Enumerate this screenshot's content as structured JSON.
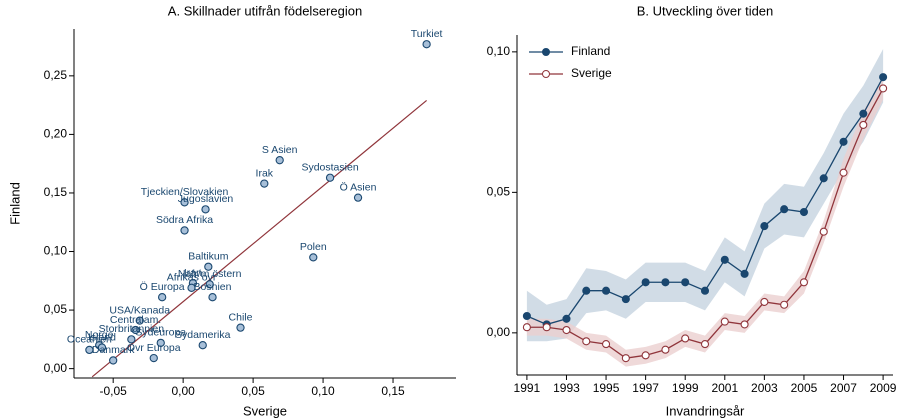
{
  "chart_data": [
    {
      "type": "scatter",
      "title": "A. Skillnader utifrån födelseregion",
      "x_label": "Sverige",
      "y_label": "Finland",
      "labels": [
        "Turkiet",
        "S Asien",
        "Sydostasien",
        "Irak",
        "Ö Asien",
        "Tjeckien/Slovakien",
        "Jugoslavien",
        "Södra Afrika",
        "Polen",
        "Baltikum",
        "Iran",
        "Nafr/m östern",
        "Afrikas övr",
        "Ö Europa",
        "Bosnien",
        "USA/Kanada",
        "Chile",
        "Centralam.",
        "Sydamerika",
        "Storbritannien",
        "Sydeuropa",
        "Övr Europa",
        "Norge",
        "Island",
        "Oceanien",
        "Danmark"
      ],
      "x": [
        0.174,
        0.069,
        0.105,
        0.058,
        0.125,
        0.001,
        0.016,
        0.001,
        0.093,
        0.018,
        0.007,
        0.019,
        0.006,
        -0.015,
        0.021,
        -0.031,
        0.041,
        -0.034,
        0.014,
        -0.037,
        -0.016,
        -0.021,
        -0.06,
        -0.058,
        -0.067,
        -0.05
      ],
      "values": [
        0.277,
        0.178,
        0.163,
        0.158,
        0.146,
        0.142,
        0.136,
        0.118,
        0.095,
        0.087,
        0.073,
        0.072,
        0.069,
        0.061,
        0.061,
        0.041,
        0.035,
        0.033,
        0.02,
        0.025,
        0.022,
        0.009,
        0.02,
        0.018,
        0.016,
        0.007
      ],
      "color": "#1a476f",
      "marker_fill": "#a7bfd8",
      "fit": {
        "x": [
          -0.065,
          0.174
        ],
        "values": [
          -0.007,
          0.229
        ],
        "color": "#90353b"
      },
      "xlim": [
        -0.078,
        0.195
      ],
      "ylim": [
        -0.008,
        0.29
      ],
      "xticks": [
        {
          "value": -0.05,
          "label": "-0,05"
        },
        {
          "value": 0,
          "label": "0,00"
        },
        {
          "value": 0.05,
          "label": "0,05"
        },
        {
          "value": 0.1,
          "label": "0,10"
        },
        {
          "value": 0.15,
          "label": "0,15"
        }
      ],
      "yticks": [
        {
          "value": 0,
          "label": "0,00"
        },
        {
          "value": 0.05,
          "label": "0,05"
        },
        {
          "value": 0.1,
          "label": "0,10"
        },
        {
          "value": 0.15,
          "label": "0,15"
        },
        {
          "value": 0.2,
          "label": "0,20"
        },
        {
          "value": 0.25,
          "label": "0,25"
        }
      ]
    },
    {
      "type": "line",
      "title": "B. Utveckling över tiden",
      "x_label": "Invandringsår",
      "x": [
        1991,
        1992,
        1993,
        1994,
        1995,
        1996,
        1997,
        1998,
        1999,
        2000,
        2001,
        2002,
        2003,
        2004,
        2005,
        2006,
        2007,
        2008,
        2009
      ],
      "xlim": [
        1990.5,
        2009.5
      ],
      "xticks": [
        1991,
        1993,
        1995,
        1997,
        1999,
        2001,
        2003,
        2005,
        2007,
        2009
      ],
      "ylim": [
        -0.015,
        0.106
      ],
      "yticks": [
        {
          "value": 0,
          "label": "0,00"
        },
        {
          "value": 0.05,
          "label": "0,05"
        },
        {
          "value": 0.1,
          "label": "0,10"
        }
      ],
      "legend": "top-left",
      "series": [
        {
          "name": "Finland",
          "color": "#1a476f",
          "marker": "filled",
          "band_color": "#c6d3e0",
          "values": [
            0.006,
            0.003,
            0.005,
            0.015,
            0.015,
            0.012,
            0.018,
            0.018,
            0.018,
            0.015,
            0.026,
            0.021,
            0.038,
            0.044,
            0.043,
            0.055,
            0.068,
            0.078,
            0.091
          ],
          "lower": [
            -0.003,
            -0.003,
            -0.002,
            0.007,
            0.008,
            0.005,
            0.011,
            0.011,
            0.011,
            0.008,
            0.018,
            0.013,
            0.03,
            0.035,
            0.034,
            0.046,
            0.058,
            0.068,
            0.082
          ],
          "upper": [
            0.015,
            0.01,
            0.012,
            0.023,
            0.022,
            0.019,
            0.025,
            0.025,
            0.025,
            0.022,
            0.034,
            0.029,
            0.046,
            0.053,
            0.052,
            0.064,
            0.078,
            0.088,
            0.101
          ]
        },
        {
          "name": "Sverige",
          "color": "#90353b",
          "marker": "hollow",
          "band_color": "#ebcfcf",
          "values": [
            0.002,
            0.002,
            0.001,
            -0.003,
            -0.004,
            -0.009,
            -0.008,
            -0.006,
            -0.002,
            -0.004,
            0.004,
            0.003,
            0.011,
            0.01,
            0.018,
            0.036,
            0.057,
            0.074,
            0.087
          ],
          "lower": [
            -0.001,
            -0.001,
            -0.002,
            -0.006,
            -0.007,
            -0.012,
            -0.011,
            -0.009,
            -0.005,
            -0.007,
            0.001,
            0,
            0.008,
            0.007,
            0.014,
            0.032,
            0.052,
            0.069,
            0.083
          ],
          "upper": [
            0.005,
            0.005,
            0.004,
            0,
            -0.001,
            -0.006,
            -0.005,
            -0.003,
            0.001,
            -0.001,
            0.007,
            0.006,
            0.014,
            0.013,
            0.022,
            0.04,
            0.062,
            0.079,
            0.091
          ]
        }
      ]
    }
  ]
}
